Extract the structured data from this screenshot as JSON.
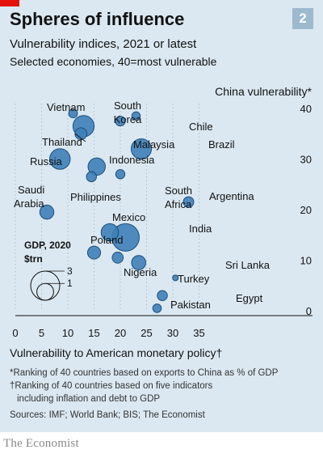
{
  "badge": "2",
  "title": "Spheres of influence",
  "subtitle": "Vulnerability indices, 2021 or latest",
  "subtitle2": "Selected economies, 40=most vulnerable",
  "notes": {
    "n1": "*Ranking of 40 countries based on exports to China as % of GDP",
    "n2": "†Ranking of 40 countries based on five indicators",
    "n3": "including inflation and debt to GDP",
    "sources": "Sources: IMF; World Bank; BIS; The Economist"
  },
  "brand": "The Economist",
  "colors": {
    "background": "#dbe8f1",
    "bubble_fill": "#3e7fb8",
    "bubble_stroke": "#1d4f7a",
    "accent": "#e3120b"
  },
  "chart_data": {
    "type": "scatter",
    "xlabel": "Vulnerability to American monetary policy†",
    "ylabel": "China vulnerability*",
    "xlim": [
      0,
      37
    ],
    "ylim": [
      0,
      40
    ],
    "xticks": [
      0,
      5,
      10,
      15,
      20,
      25,
      30,
      35
    ],
    "yticks": [
      0,
      10,
      20,
      30,
      40
    ],
    "grid": "vertical dotted lines",
    "size_legend": {
      "title": "GDP, 2020",
      "unit": "$trn",
      "values": [
        3,
        1
      ]
    },
    "points": [
      {
        "name": "Vietnam",
        "x": 11,
        "y": 39,
        "gdp": 0.27
      },
      {
        "name": "South Korea",
        "x": 13,
        "y": 36.5,
        "gdp": 1.6
      },
      {
        "name": "Thailand",
        "x": 12.5,
        "y": 35,
        "gdp": 0.5
      },
      {
        "name": "Malaysia",
        "x": 20,
        "y": 37.5,
        "gdp": 0.34
      },
      {
        "name": "Chile",
        "x": 23,
        "y": 38.5,
        "gdp": 0.25
      },
      {
        "name": "Brazil",
        "x": 24,
        "y": 32,
        "gdp": 1.45
      },
      {
        "name": "Russia",
        "x": 8.5,
        "y": 30,
        "gdp": 1.5
      },
      {
        "name": "Indonesia",
        "x": 15.5,
        "y": 28.5,
        "gdp": 1.06
      },
      {
        "name": "Philippines",
        "x": 14.5,
        "y": 26.5,
        "gdp": 0.36
      },
      {
        "name": "South Africa",
        "x": 20,
        "y": 27,
        "gdp": 0.3
      },
      {
        "name": "Argentina",
        "x": 33,
        "y": 21.5,
        "gdp": 0.39
      },
      {
        "name": "Saudi Arabia",
        "x": 6,
        "y": 19.5,
        "gdp": 0.7
      },
      {
        "name": "Mexico",
        "x": 18,
        "y": 15.5,
        "gdp": 1.07
      },
      {
        "name": "India",
        "x": 21,
        "y": 14.5,
        "gdp": 2.66
      },
      {
        "name": "Poland",
        "x": 15,
        "y": 11.5,
        "gdp": 0.6
      },
      {
        "name": "Nigeria",
        "x": 19.5,
        "y": 10.5,
        "gdp": 0.43
      },
      {
        "name": "Turkey",
        "x": 23.5,
        "y": 9.5,
        "gdp": 0.72
      },
      {
        "name": "Sri Lanka",
        "x": 30.5,
        "y": 6.5,
        "gdp": 0.08
      },
      {
        "name": "Egypt",
        "x": 28,
        "y": 3,
        "gdp": 0.36
      },
      {
        "name": "Pakistan",
        "x": 27,
        "y": 0.5,
        "gdp": 0.26
      }
    ]
  }
}
